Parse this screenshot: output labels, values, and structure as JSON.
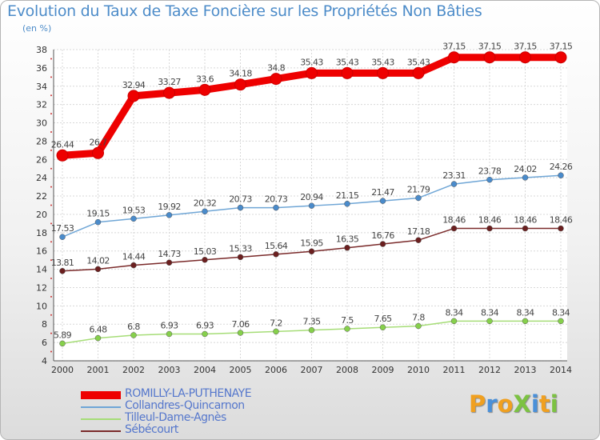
{
  "title": "Evolution du Taux de Taxe Foncière sur les Propriétés Non Bâties",
  "subtitle": "(en %)",
  "logo": {
    "text": "ProXiti",
    "letters": [
      {
        "ch": "P",
        "color": "#f0a020"
      },
      {
        "ch": "r",
        "color": "#4a90d9"
      },
      {
        "ch": "o",
        "color": "#f0a020"
      },
      {
        "ch": "X",
        "color": "#7cc242"
      },
      {
        "ch": "i",
        "color": "#4a90d9"
      },
      {
        "ch": "t",
        "color": "#f0a020"
      },
      {
        "ch": "i",
        "color": "#7cc242"
      }
    ]
  },
  "chart_data": {
    "type": "line",
    "title": "Evolution du Taux de Taxe Foncière sur les Propriétés Non Bâties",
    "ylabel": "(en %)",
    "xlabel": "",
    "x": [
      "2000",
      "2001",
      "2002",
      "2003",
      "2004",
      "2005",
      "2006",
      "2007",
      "2008",
      "2009",
      "2010",
      "2011",
      "2012",
      "2013",
      "2014"
    ],
    "ylim": [
      4,
      38
    ],
    "yticks": [
      4,
      6,
      8,
      10,
      12,
      14,
      16,
      18,
      20,
      22,
      24,
      26,
      28,
      30,
      32,
      34,
      36,
      38
    ],
    "grid": true,
    "legend_position": "bottom-left",
    "series": [
      {
        "name": "ROMILLY-LA-PUTHENAYE",
        "color": "#ee0000",
        "marker_color": "#ee0000",
        "bold": true,
        "values": [
          26.44,
          26.7,
          32.94,
          33.27,
          33.6,
          34.18,
          34.8,
          35.43,
          35.43,
          35.43,
          35.43,
          37.15,
          37.15,
          37.15,
          37.15
        ],
        "labels": [
          "26.44",
          "26.7",
          "32.94",
          "33.27",
          "33.6",
          "34.18",
          "34.8",
          "35.43",
          "35.43",
          "35.43",
          "35.43",
          "37.15",
          "37.15",
          "37.15",
          "37.15"
        ]
      },
      {
        "name": "Collandres-Quincarnon",
        "color": "#6fa6d6",
        "marker_color": "#4a8bcb",
        "bold": false,
        "values": [
          17.53,
          19.15,
          19.53,
          19.92,
          20.32,
          20.73,
          20.73,
          20.94,
          21.15,
          21.47,
          21.79,
          23.31,
          23.78,
          24.02,
          24.26
        ],
        "labels": [
          "17.53",
          "19.15",
          "19.53",
          "19.92",
          "20.32",
          "20.73",
          "20.73",
          "20.94",
          "21.15",
          "21.47",
          "21.79",
          "23.31",
          "23.78",
          "24.02",
          "24.26"
        ]
      },
      {
        "name": "Tilleul-Dame-Agnès",
        "color": "#a6dd77",
        "marker_color": "#86d04b",
        "bold": false,
        "values": [
          5.89,
          6.48,
          6.8,
          6.93,
          6.93,
          7.06,
          7.2,
          7.35,
          7.5,
          7.65,
          7.8,
          8.34,
          8.34,
          8.34,
          8.34
        ],
        "labels": [
          "5.89",
          "6.48",
          "6.8",
          "6.93",
          "6.93",
          "7.06",
          "7.2",
          "7.35",
          "7.5",
          "7.65",
          "7.8",
          "8.34",
          "8.34",
          "8.34",
          "8.34"
        ]
      },
      {
        "name": "Sébécourt",
        "color": "#7a2a2a",
        "marker_color": "#6b1f1f",
        "bold": false,
        "values": [
          13.81,
          14.02,
          14.44,
          14.73,
          15.03,
          15.33,
          15.64,
          15.95,
          16.35,
          16.76,
          17.18,
          18.46,
          18.46,
          18.46,
          18.46
        ],
        "labels": [
          "13.81",
          "14.02",
          "14.44",
          "14.73",
          "15.03",
          "15.33",
          "15.64",
          "15.95",
          "16.35",
          "16.76",
          "17.18",
          "18.46",
          "18.46",
          "18.46",
          "18.46"
        ]
      }
    ]
  }
}
